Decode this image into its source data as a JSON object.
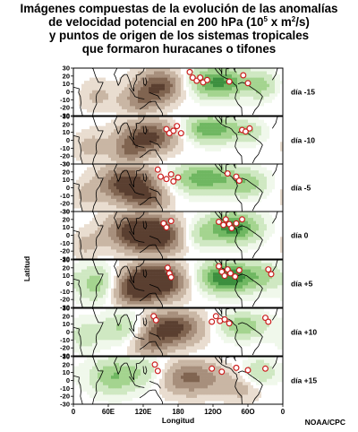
{
  "title_lines": [
    "Imágenes compuestas de la evolución de las anomalías",
    "de velocidad potencial en 200 hPa (10",
    "5",
    " x m",
    "2",
    "/s)",
    "y puntos de origen de los sistemas tropicales",
    "que formaron huracanes o tifones"
  ],
  "credit": "NOAA/CPC",
  "colors": {
    "negative": [
      "#5a3f30",
      "#806450",
      "#a78f7c",
      "#c9b6a4",
      "#e9ddd0"
    ],
    "positive": [
      "#f0f8eb",
      "#cfe8c2",
      "#a4d48f",
      "#6fb761",
      "#3c8f3e"
    ],
    "marker_fill": "#ffffff",
    "marker_edge": "#cc1f1f"
  },
  "chart_data": {
    "type": "heatmap",
    "title": "Imágenes compuestas de la evolución de las anomalías de velocidad potencial en 200 hPa (10^5 x m^2/s) y puntos de origen de los sistemas tropicales que formaron huracanes o tifones",
    "xlabel": "Longitud",
    "ylabel": "Latitud",
    "x_ticks": [
      "0",
      "60E",
      "120E",
      "180",
      "120O",
      "60O",
      "0"
    ],
    "x_range_deg_east": [
      0,
      360
    ],
    "y_ticks": [
      30,
      20,
      10,
      0,
      -10,
      -20,
      -30
    ],
    "ylim": [
      -30,
      30
    ],
    "panels": [
      {
        "label": "día -15",
        "anomalies": [
          {
            "lon": 150,
            "lat": 8,
            "amp": -2.5,
            "sx": 30,
            "sy": 14
          },
          {
            "lon": 115,
            "lat": -12,
            "amp": -1.4,
            "sx": 25,
            "sy": 12
          },
          {
            "lon": 248,
            "lat": 12,
            "amp": 2.6,
            "sx": 38,
            "sy": 14
          },
          {
            "lon": 325,
            "lat": 8,
            "amp": 1.2,
            "sx": 18,
            "sy": 12
          },
          {
            "lon": 40,
            "lat": -5,
            "amp": -0.7,
            "sx": 22,
            "sy": 14
          }
        ],
        "origins": [
          {
            "lon": 200,
            "lat": 25
          },
          {
            "lon": 205,
            "lat": 18
          },
          {
            "lon": 212,
            "lat": 14
          },
          {
            "lon": 218,
            "lat": 18
          },
          {
            "lon": 223,
            "lat": 12
          },
          {
            "lon": 230,
            "lat": 15
          },
          {
            "lon": 268,
            "lat": 13
          },
          {
            "lon": 292,
            "lat": 21
          },
          {
            "lon": 300,
            "lat": 11
          }
        ]
      },
      {
        "label": "día -10",
        "anomalies": [
          {
            "lon": 130,
            "lat": 5,
            "amp": -2.7,
            "sx": 34,
            "sy": 14
          },
          {
            "lon": 95,
            "lat": -15,
            "amp": -1.4,
            "sx": 22,
            "sy": 12
          },
          {
            "lon": 235,
            "lat": 14,
            "amp": 2.4,
            "sx": 32,
            "sy": 12
          },
          {
            "lon": 300,
            "lat": 10,
            "amp": 1.1,
            "sx": 20,
            "sy": 10
          },
          {
            "lon": 30,
            "lat": -8,
            "amp": -0.8,
            "sx": 20,
            "sy": 14
          }
        ],
        "origins": [
          {
            "lon": 160,
            "lat": 14
          },
          {
            "lon": 165,
            "lat": 9
          },
          {
            "lon": 172,
            "lat": 12
          },
          {
            "lon": 178,
            "lat": 18
          },
          {
            "lon": 185,
            "lat": 9
          },
          {
            "lon": 290,
            "lat": 13
          },
          {
            "lon": 296,
            "lat": 11
          },
          {
            "lon": 303,
            "lat": 15
          }
        ]
      },
      {
        "label": "día -5",
        "anomalies": [
          {
            "lon": 95,
            "lat": 5,
            "amp": -3.0,
            "sx": 35,
            "sy": 16
          },
          {
            "lon": 130,
            "lat": -15,
            "amp": -1.5,
            "sx": 25,
            "sy": 12
          },
          {
            "lon": 225,
            "lat": 12,
            "amp": 2.2,
            "sx": 40,
            "sy": 14
          },
          {
            "lon": 300,
            "lat": 5,
            "amp": 1.4,
            "sx": 25,
            "sy": 12
          },
          {
            "lon": 20,
            "lat": -10,
            "amp": -0.6,
            "sx": 18,
            "sy": 12
          }
        ],
        "origins": [
          {
            "lon": 145,
            "lat": 23
          },
          {
            "lon": 150,
            "lat": 14
          },
          {
            "lon": 160,
            "lat": 11
          },
          {
            "lon": 168,
            "lat": 17
          },
          {
            "lon": 172,
            "lat": 8
          },
          {
            "lon": 180,
            "lat": 13
          },
          {
            "lon": 265,
            "lat": 18
          },
          {
            "lon": 280,
            "lat": 14
          },
          {
            "lon": 285,
            "lat": 9
          }
        ]
      },
      {
        "label": "día 0",
        "anomalies": [
          {
            "lon": 115,
            "lat": 5,
            "amp": -3.3,
            "sx": 38,
            "sy": 16
          },
          {
            "lon": 150,
            "lat": -5,
            "amp": -1.5,
            "sx": 30,
            "sy": 15
          },
          {
            "lon": 275,
            "lat": 10,
            "amp": 2.8,
            "sx": 32,
            "sy": 14
          },
          {
            "lon": 215,
            "lat": 0,
            "amp": 1.0,
            "sx": 20,
            "sy": 12
          },
          {
            "lon": 20,
            "lat": -12,
            "amp": -0.7,
            "sx": 18,
            "sy": 12
          }
        ],
        "origins": [
          {
            "lon": 155,
            "lat": 15
          },
          {
            "lon": 160,
            "lat": 10
          },
          {
            "lon": 168,
            "lat": 18
          },
          {
            "lon": 250,
            "lat": 17
          },
          {
            "lon": 258,
            "lat": 13
          },
          {
            "lon": 262,
            "lat": 20
          },
          {
            "lon": 268,
            "lat": 14
          },
          {
            "lon": 272,
            "lat": 9
          },
          {
            "lon": 280,
            "lat": 15
          },
          {
            "lon": 290,
            "lat": 20
          }
        ]
      },
      {
        "label": "día +5",
        "anomalies": [
          {
            "lon": 140,
            "lat": 3,
            "amp": -3.8,
            "sx": 35,
            "sy": 16
          },
          {
            "lon": 100,
            "lat": -10,
            "amp": -1.6,
            "sx": 25,
            "sy": 14
          },
          {
            "lon": 265,
            "lat": 8,
            "amp": 3.2,
            "sx": 35,
            "sy": 14
          },
          {
            "lon": 40,
            "lat": 0,
            "amp": 1.6,
            "sx": 25,
            "sy": 16
          },
          {
            "lon": 330,
            "lat": 10,
            "amp": 1.0,
            "sx": 18,
            "sy": 12
          }
        ],
        "origins": [
          {
            "lon": 162,
            "lat": 20
          },
          {
            "lon": 165,
            "lat": 13
          },
          {
            "lon": 168,
            "lat": 8
          },
          {
            "lon": 250,
            "lat": 22
          },
          {
            "lon": 255,
            "lat": 15
          },
          {
            "lon": 260,
            "lat": 10
          },
          {
            "lon": 265,
            "lat": 18
          },
          {
            "lon": 270,
            "lat": 13
          },
          {
            "lon": 278,
            "lat": 9
          },
          {
            "lon": 285,
            "lat": 17
          },
          {
            "lon": 335,
            "lat": 18
          },
          {
            "lon": 340,
            "lat": 12
          }
        ]
      },
      {
        "label": "día +10",
        "anomalies": [
          {
            "lon": 170,
            "lat": 5,
            "amp": -2.8,
            "sx": 35,
            "sy": 15
          },
          {
            "lon": 130,
            "lat": -15,
            "amp": -1.3,
            "sx": 25,
            "sy": 12
          },
          {
            "lon": 85,
            "lat": 5,
            "amp": 1.4,
            "sx": 25,
            "sy": 14
          },
          {
            "lon": 290,
            "lat": 8,
            "amp": 1.7,
            "sx": 30,
            "sy": 12
          },
          {
            "lon": 20,
            "lat": -5,
            "amp": 0.9,
            "sx": 20,
            "sy": 14
          }
        ],
        "origins": [
          {
            "lon": 138,
            "lat": 20
          },
          {
            "lon": 142,
            "lat": 15
          },
          {
            "lon": 238,
            "lat": 13
          },
          {
            "lon": 245,
            "lat": 20
          },
          {
            "lon": 252,
            "lat": 14
          },
          {
            "lon": 260,
            "lat": 16
          },
          {
            "lon": 268,
            "lat": 11
          },
          {
            "lon": 330,
            "lat": 18
          },
          {
            "lon": 335,
            "lat": 13
          }
        ]
      },
      {
        "label": "día +15",
        "anomalies": [
          {
            "lon": 200,
            "lat": 3,
            "amp": -2.0,
            "sx": 40,
            "sy": 15
          },
          {
            "lon": 70,
            "lat": 5,
            "amp": 1.8,
            "sx": 30,
            "sy": 16
          },
          {
            "lon": 130,
            "lat": 10,
            "amp": 1.0,
            "sx": 25,
            "sy": 14
          },
          {
            "lon": 320,
            "lat": 10,
            "amp": 1.3,
            "sx": 20,
            "sy": 12
          },
          {
            "lon": 290,
            "lat": -10,
            "amp": -0.8,
            "sx": 25,
            "sy": 12
          }
        ],
        "origins": [
          {
            "lon": 140,
            "lat": 20
          },
          {
            "lon": 145,
            "lat": 12
          },
          {
            "lon": 238,
            "lat": 15
          },
          {
            "lon": 255,
            "lat": 11
          },
          {
            "lon": 280,
            "lat": 16
          },
          {
            "lon": 300,
            "lat": 13
          },
          {
            "lon": 330,
            "lat": 15
          }
        ]
      }
    ]
  }
}
